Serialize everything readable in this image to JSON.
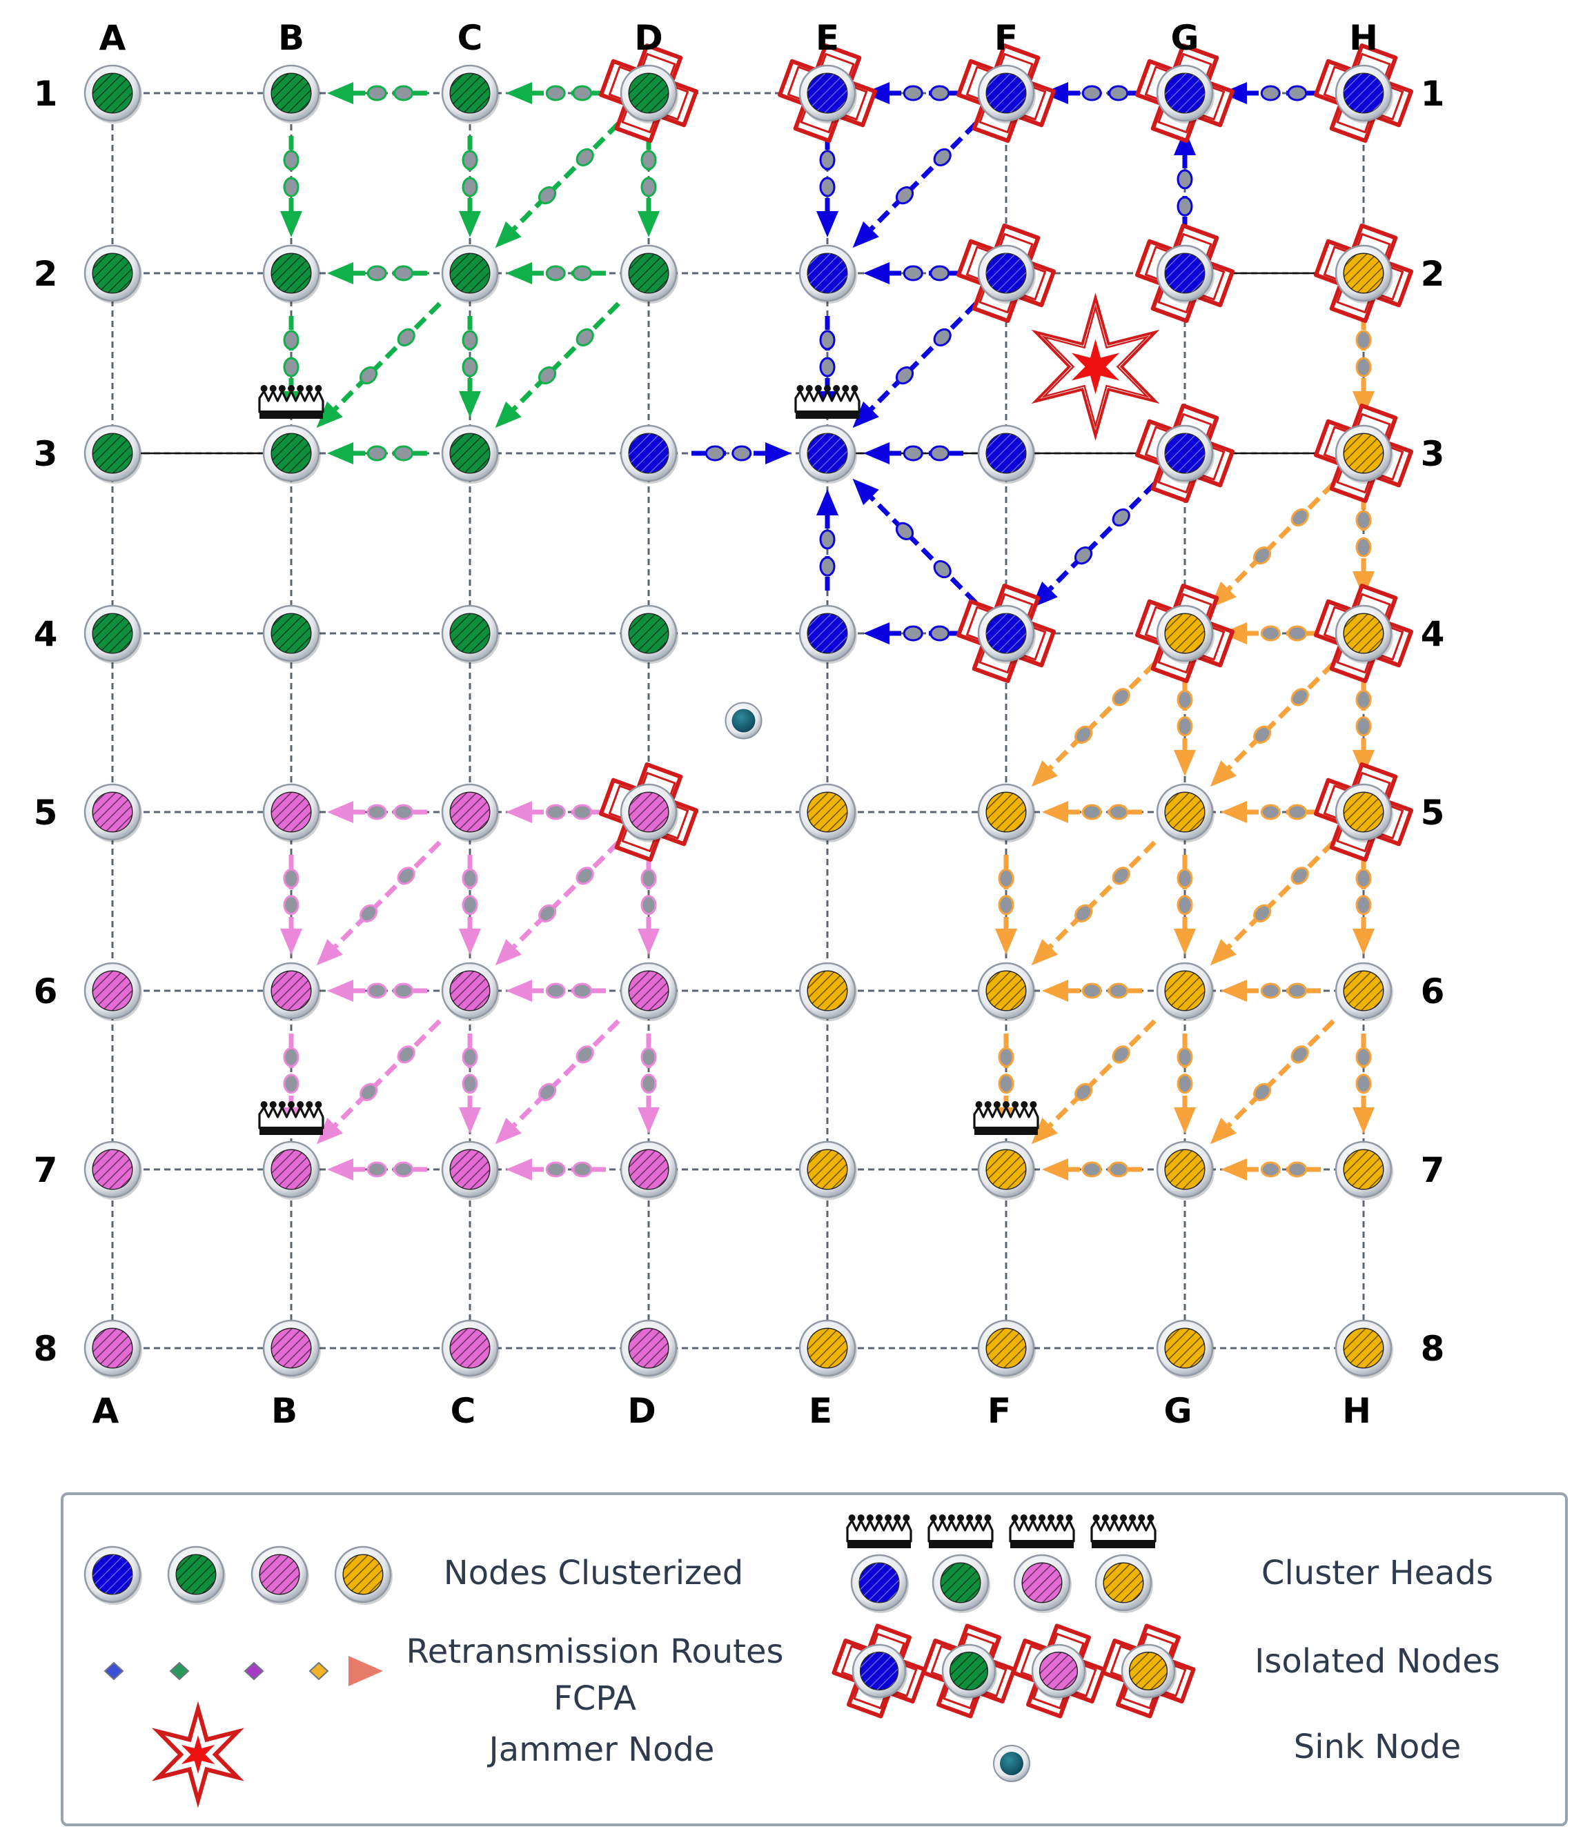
{
  "columns": [
    "A",
    "B",
    "C",
    "D",
    "E",
    "F",
    "G",
    "H"
  ],
  "rows": [
    "1",
    "2",
    "3",
    "4",
    "5",
    "6",
    "7",
    "8"
  ],
  "clusters": {
    "blue": {
      "color": "#0b00d8",
      "hatch": false
    },
    "green": {
      "color": "#0d8f3e",
      "hatch": true
    },
    "pink": {
      "color": "#e46bd3",
      "hatch": true
    },
    "orange": {
      "color": "#f0b300",
      "hatch": true
    }
  },
  "route_colors": {
    "green": "#10b04a",
    "blue": "#0b00e0",
    "pink": "#ec88da",
    "orange": "#f7a23a"
  },
  "nodes": [
    {
      "cell": "A1",
      "cluster": "green"
    },
    {
      "cell": "B1",
      "cluster": "green"
    },
    {
      "cell": "C1",
      "cluster": "green"
    },
    {
      "cell": "D1",
      "cluster": "green",
      "isolated": true
    },
    {
      "cell": "E1",
      "cluster": "blue",
      "isolated": true
    },
    {
      "cell": "F1",
      "cluster": "blue",
      "isolated": true
    },
    {
      "cell": "G1",
      "cluster": "blue",
      "isolated": true
    },
    {
      "cell": "H1",
      "cluster": "blue",
      "isolated": true
    },
    {
      "cell": "A2",
      "cluster": "green"
    },
    {
      "cell": "B2",
      "cluster": "green"
    },
    {
      "cell": "C2",
      "cluster": "green"
    },
    {
      "cell": "D2",
      "cluster": "green"
    },
    {
      "cell": "E2",
      "cluster": "blue"
    },
    {
      "cell": "F2",
      "cluster": "blue",
      "isolated": true
    },
    {
      "cell": "G2",
      "cluster": "blue",
      "isolated": true
    },
    {
      "cell": "H2",
      "cluster": "orange",
      "isolated": true
    },
    {
      "cell": "A3",
      "cluster": "green"
    },
    {
      "cell": "B3",
      "cluster": "green",
      "head": true
    },
    {
      "cell": "C3",
      "cluster": "green"
    },
    {
      "cell": "D3",
      "cluster": "blue"
    },
    {
      "cell": "E3",
      "cluster": "blue",
      "head": true
    },
    {
      "cell": "F3",
      "cluster": "blue"
    },
    {
      "cell": "G3",
      "cluster": "blue",
      "isolated": true
    },
    {
      "cell": "H3",
      "cluster": "orange",
      "isolated": true
    },
    {
      "cell": "A4",
      "cluster": "green"
    },
    {
      "cell": "B4",
      "cluster": "green"
    },
    {
      "cell": "C4",
      "cluster": "green"
    },
    {
      "cell": "D4",
      "cluster": "green"
    },
    {
      "cell": "E4",
      "cluster": "blue"
    },
    {
      "cell": "F4",
      "cluster": "blue",
      "isolated": true
    },
    {
      "cell": "G4",
      "cluster": "orange",
      "isolated": true
    },
    {
      "cell": "H4",
      "cluster": "orange",
      "isolated": true
    },
    {
      "cell": "A5",
      "cluster": "pink"
    },
    {
      "cell": "B5",
      "cluster": "pink"
    },
    {
      "cell": "C5",
      "cluster": "pink"
    },
    {
      "cell": "D5",
      "cluster": "pink",
      "isolated": true
    },
    {
      "cell": "E5",
      "cluster": "orange"
    },
    {
      "cell": "F5",
      "cluster": "orange"
    },
    {
      "cell": "G5",
      "cluster": "orange"
    },
    {
      "cell": "H5",
      "cluster": "orange",
      "isolated": true
    },
    {
      "cell": "A6",
      "cluster": "pink"
    },
    {
      "cell": "B6",
      "cluster": "pink"
    },
    {
      "cell": "C6",
      "cluster": "pink"
    },
    {
      "cell": "D6",
      "cluster": "pink"
    },
    {
      "cell": "E6",
      "cluster": "orange"
    },
    {
      "cell": "F6",
      "cluster": "orange"
    },
    {
      "cell": "G6",
      "cluster": "orange"
    },
    {
      "cell": "H6",
      "cluster": "orange"
    },
    {
      "cell": "A7",
      "cluster": "pink"
    },
    {
      "cell": "B7",
      "cluster": "pink",
      "head": true
    },
    {
      "cell": "C7",
      "cluster": "pink"
    },
    {
      "cell": "D7",
      "cluster": "pink"
    },
    {
      "cell": "E7",
      "cluster": "orange"
    },
    {
      "cell": "F7",
      "cluster": "orange",
      "head": true
    },
    {
      "cell": "G7",
      "cluster": "orange"
    },
    {
      "cell": "H7",
      "cluster": "orange"
    },
    {
      "cell": "A8",
      "cluster": "pink"
    },
    {
      "cell": "B8",
      "cluster": "pink"
    },
    {
      "cell": "C8",
      "cluster": "pink"
    },
    {
      "cell": "D8",
      "cluster": "pink"
    },
    {
      "cell": "E8",
      "cluster": "orange"
    },
    {
      "cell": "F8",
      "cluster": "orange"
    },
    {
      "cell": "G8",
      "cluster": "orange"
    },
    {
      "cell": "H8",
      "cluster": "orange"
    }
  ],
  "solid_links": [
    [
      "A3",
      "B3"
    ],
    [
      "G2",
      "H2"
    ],
    [
      "E3",
      "H3"
    ]
  ],
  "routes": [
    {
      "cluster": "green",
      "from": "D1",
      "to": "C1"
    },
    {
      "cluster": "green",
      "from": "C1",
      "to": "B1"
    },
    {
      "cluster": "green",
      "from": "B1",
      "to": "B2"
    },
    {
      "cluster": "green",
      "from": "C1",
      "to": "C2"
    },
    {
      "cluster": "green",
      "from": "D1",
      "to": "C2"
    },
    {
      "cluster": "green",
      "from": "D1",
      "to": "D2"
    },
    {
      "cluster": "green",
      "from": "D2",
      "to": "C2"
    },
    {
      "cluster": "green",
      "from": "C2",
      "to": "B2"
    },
    {
      "cluster": "green",
      "from": "B2",
      "to": "B3"
    },
    {
      "cluster": "green",
      "from": "C2",
      "to": "B3"
    },
    {
      "cluster": "green",
      "from": "C2",
      "to": "C3"
    },
    {
      "cluster": "green",
      "from": "C3",
      "to": "B3"
    },
    {
      "cluster": "green",
      "from": "D2",
      "to": "C3"
    },
    {
      "cluster": "blue",
      "from": "H1",
      "to": "G1"
    },
    {
      "cluster": "blue",
      "from": "G1",
      "to": "F1"
    },
    {
      "cluster": "blue",
      "from": "F1",
      "to": "E1"
    },
    {
      "cluster": "blue",
      "from": "E1",
      "to": "E2"
    },
    {
      "cluster": "blue",
      "from": "F1",
      "to": "E2"
    },
    {
      "cluster": "blue",
      "from": "G2",
      "to": "G1"
    },
    {
      "cluster": "blue",
      "from": "F2",
      "to": "E2"
    },
    {
      "cluster": "blue",
      "from": "E2",
      "to": "E3"
    },
    {
      "cluster": "blue",
      "from": "F2",
      "to": "E3"
    },
    {
      "cluster": "blue",
      "from": "D3",
      "to": "E3"
    },
    {
      "cluster": "blue",
      "from": "F3",
      "to": "E3"
    },
    {
      "cluster": "blue",
      "from": "G3",
      "to": "F4"
    },
    {
      "cluster": "blue",
      "from": "F4",
      "to": "E4"
    },
    {
      "cluster": "blue",
      "from": "E4",
      "to": "E3"
    },
    {
      "cluster": "blue",
      "from": "F4",
      "to": "E3"
    },
    {
      "cluster": "orange",
      "from": "H2",
      "to": "H3"
    },
    {
      "cluster": "orange",
      "from": "H3",
      "to": "H4"
    },
    {
      "cluster": "orange",
      "from": "H3",
      "to": "G4"
    },
    {
      "cluster": "orange",
      "from": "H4",
      "to": "G4"
    },
    {
      "cluster": "orange",
      "from": "G4",
      "to": "G5"
    },
    {
      "cluster": "orange",
      "from": "G4",
      "to": "F5"
    },
    {
      "cluster": "orange",
      "from": "H4",
      "to": "G5"
    },
    {
      "cluster": "orange",
      "from": "H4",
      "to": "H5"
    },
    {
      "cluster": "orange",
      "from": "H5",
      "to": "G5"
    },
    {
      "cluster": "orange",
      "from": "G5",
      "to": "F5"
    },
    {
      "cluster": "orange",
      "from": "F5",
      "to": "F6"
    },
    {
      "cluster": "orange",
      "from": "G5",
      "to": "F6"
    },
    {
      "cluster": "orange",
      "from": "G5",
      "to": "G6"
    },
    {
      "cluster": "orange",
      "from": "H5",
      "to": "G6"
    },
    {
      "cluster": "orange",
      "from": "H5",
      "to": "H6"
    },
    {
      "cluster": "orange",
      "from": "G6",
      "to": "F6"
    },
    {
      "cluster": "orange",
      "from": "H6",
      "to": "G6"
    },
    {
      "cluster": "orange",
      "from": "F6",
      "to": "F7"
    },
    {
      "cluster": "orange",
      "from": "G6",
      "to": "F7"
    },
    {
      "cluster": "orange",
      "from": "G6",
      "to": "G7"
    },
    {
      "cluster": "orange",
      "from": "H6",
      "to": "G7"
    },
    {
      "cluster": "orange",
      "from": "H6",
      "to": "H7"
    },
    {
      "cluster": "orange",
      "from": "G7",
      "to": "F7"
    },
    {
      "cluster": "orange",
      "from": "H7",
      "to": "G7"
    },
    {
      "cluster": "pink",
      "from": "D5",
      "to": "C5"
    },
    {
      "cluster": "pink",
      "from": "C5",
      "to": "B5"
    },
    {
      "cluster": "pink",
      "from": "B5",
      "to": "B6"
    },
    {
      "cluster": "pink",
      "from": "C5",
      "to": "B6"
    },
    {
      "cluster": "pink",
      "from": "C5",
      "to": "C6"
    },
    {
      "cluster": "pink",
      "from": "D5",
      "to": "C6"
    },
    {
      "cluster": "pink",
      "from": "D5",
      "to": "D6"
    },
    {
      "cluster": "pink",
      "from": "D6",
      "to": "C6"
    },
    {
      "cluster": "pink",
      "from": "C6",
      "to": "B6"
    },
    {
      "cluster": "pink",
      "from": "B6",
      "to": "B7"
    },
    {
      "cluster": "pink",
      "from": "C6",
      "to": "B7"
    },
    {
      "cluster": "pink",
      "from": "C6",
      "to": "C7"
    },
    {
      "cluster": "pink",
      "from": "D6",
      "to": "C7"
    },
    {
      "cluster": "pink",
      "from": "D6",
      "to": "D7"
    },
    {
      "cluster": "pink",
      "from": "D7",
      "to": "C7"
    },
    {
      "cluster": "pink",
      "from": "C7",
      "to": "B7"
    }
  ],
  "jammer": {
    "between": [
      "F2",
      "G3"
    ]
  },
  "sink": {
    "between": [
      "D4",
      "E5"
    ]
  },
  "legend": {
    "nodes_clusterized": "Nodes Clusterized",
    "cluster_heads": "Cluster Heads",
    "routes_line1": "Retransmission Routes",
    "routes_line2": "FCPA",
    "isolated_nodes": "Isolated Nodes",
    "jammer_node": "Jammer Node",
    "sink_node": "Sink Node"
  }
}
